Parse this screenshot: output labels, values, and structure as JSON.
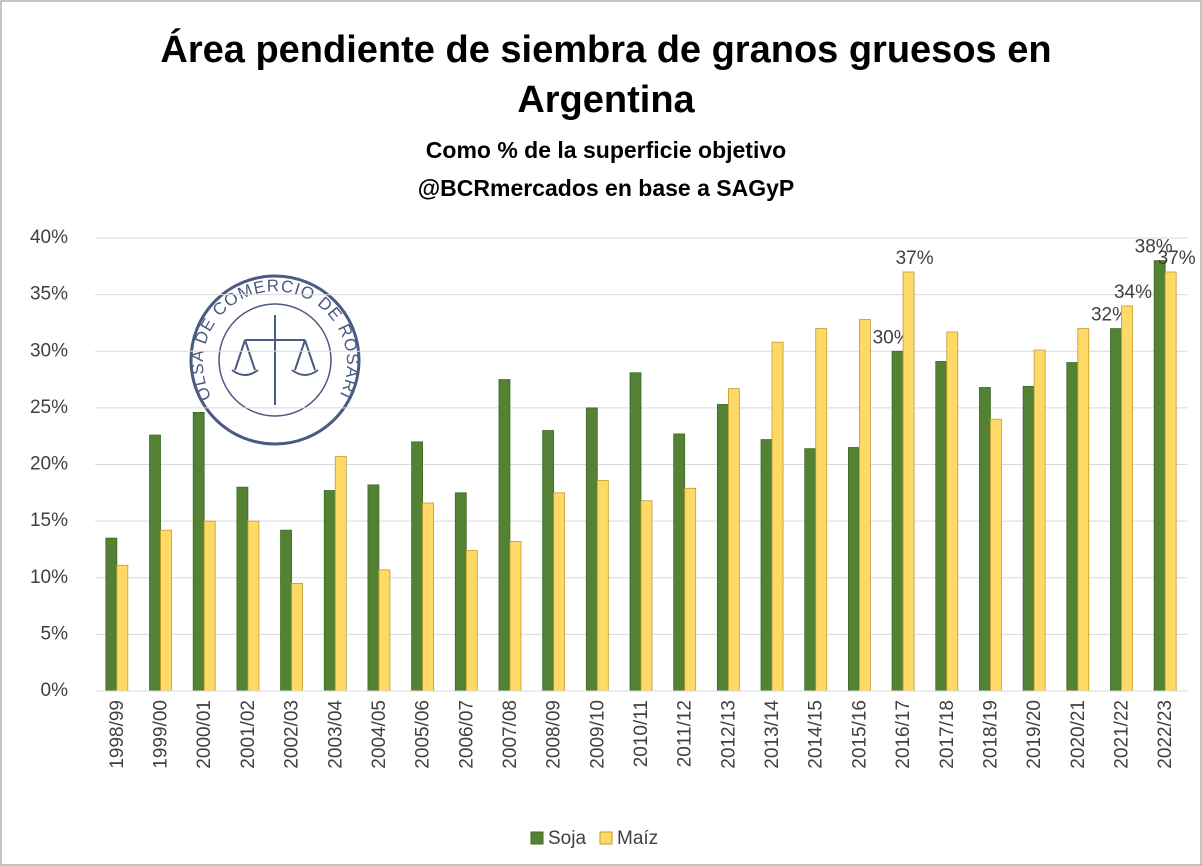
{
  "chart_data": {
    "type": "bar",
    "title": "Área pendiente de siembra de granos gruesos en Argentina",
    "subtitle": "Como % de la superficie objetivo",
    "source": "@BCRmercados en base a SAGyP",
    "logo_text": "BOLSA DE COMERCIO DE ROSARIO",
    "categories": [
      "1998/99",
      "1999/00",
      "2000/01",
      "2001/02",
      "2002/03",
      "2003/04",
      "2004/05",
      "2005/06",
      "2006/07",
      "2007/08",
      "2008/09",
      "2009/10",
      "2010/11",
      "2011/12",
      "2012/13",
      "2013/14",
      "2014/15",
      "2015/16",
      "2016/17",
      "2017/18",
      "2018/19",
      "2019/20",
      "2020/21",
      "2021/22",
      "2022/23"
    ],
    "series": [
      {
        "name": "Soja",
        "color": "#548235",
        "values": [
          13.5,
          22.6,
          24.6,
          18.0,
          14.2,
          17.7,
          18.2,
          22.0,
          17.5,
          27.5,
          23.0,
          25.0,
          28.1,
          22.7,
          25.3,
          22.2,
          21.4,
          21.5,
          30,
          29.1,
          26.8,
          26.9,
          29.0,
          32,
          38
        ],
        "value_labels": [
          null,
          null,
          null,
          null,
          null,
          null,
          null,
          null,
          null,
          null,
          null,
          null,
          null,
          null,
          null,
          null,
          null,
          null,
          "30%",
          null,
          null,
          null,
          null,
          "32%",
          "38%"
        ]
      },
      {
        "name": "Maíz",
        "color": "#ffd966",
        "values": [
          11.1,
          14.2,
          15.0,
          15.0,
          9.5,
          20.7,
          10.7,
          16.6,
          12.4,
          13.2,
          17.5,
          18.6,
          16.8,
          17.9,
          26.7,
          30.8,
          32.0,
          32.8,
          37,
          31.7,
          24.0,
          30.1,
          32.0,
          34,
          37
        ],
        "value_labels": [
          null,
          null,
          null,
          null,
          null,
          null,
          null,
          null,
          null,
          null,
          null,
          null,
          null,
          null,
          null,
          null,
          null,
          null,
          "37%",
          null,
          null,
          null,
          null,
          "34%",
          "37%"
        ]
      }
    ],
    "ylim": [
      0,
      40
    ],
    "yticks": [
      {
        "value": 0,
        "label": "0%"
      },
      {
        "value": 5,
        "label": "5%"
      },
      {
        "value": 10,
        "label": "10%"
      },
      {
        "value": 15,
        "label": "15%"
      },
      {
        "value": 20,
        "label": "20%"
      },
      {
        "value": 25,
        "label": "25%"
      },
      {
        "value": 30,
        "label": "30%"
      },
      {
        "value": 35,
        "label": "35%"
      },
      {
        "value": 40,
        "label": "40%"
      }
    ],
    "grid": true,
    "legend": "bottom"
  }
}
